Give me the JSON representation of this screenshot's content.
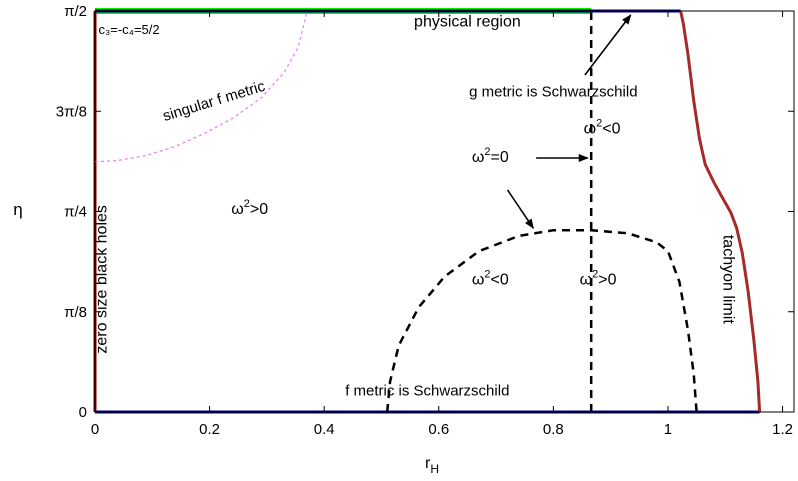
{
  "chart_data": {
    "type": "line",
    "title": "",
    "xlabel": {
      "base": "r",
      "sub": "H"
    },
    "ylabel": "η",
    "xlim": [
      0,
      1.22
    ],
    "ylim": [
      0,
      1.5708
    ],
    "xticks": [
      {
        "v": 0,
        "label": "0"
      },
      {
        "v": 0.2,
        "label": "0.2"
      },
      {
        "v": 0.4,
        "label": "0.4"
      },
      {
        "v": 0.6,
        "label": "0.6"
      },
      {
        "v": 0.8,
        "label": "0.8"
      },
      {
        "v": 1.0,
        "label": "1"
      },
      {
        "v": 1.2,
        "label": "1.2"
      }
    ],
    "yticks": [
      {
        "v": 0,
        "label": "0"
      },
      {
        "v": 0.3927,
        "label": "π/8"
      },
      {
        "v": 0.7854,
        "label": "π/4"
      },
      {
        "v": 1.1781,
        "label": "3π/8"
      },
      {
        "v": 1.5708,
        "label": "π/2"
      }
    ],
    "grid": false,
    "series": [
      {
        "id": "phys",
        "color": "#00ee00",
        "width": 6,
        "dash": "",
        "points": [
          [
            0,
            1.5708
          ],
          [
            0.866,
            1.5708
          ]
        ]
      },
      {
        "id": "top",
        "color": "#000080",
        "width": 3,
        "dash": "",
        "points": [
          [
            0,
            1.5708
          ],
          [
            1.022,
            1.5708
          ]
        ]
      },
      {
        "id": "bottom",
        "color": "#000080",
        "width": 3,
        "dash": "",
        "points": [
          [
            0,
            0
          ],
          [
            1.16,
            0
          ]
        ]
      },
      {
        "id": "left",
        "color": "#8b0000",
        "width": 3,
        "dash": "",
        "points": [
          [
            0,
            0
          ],
          [
            0,
            1.5708
          ]
        ]
      },
      {
        "id": "tachyon",
        "color": "#a52a2a",
        "width": 3,
        "dash": "",
        "points": [
          [
            1.022,
            1.5708
          ],
          [
            1.027,
            1.52
          ],
          [
            1.035,
            1.4
          ],
          [
            1.045,
            1.22
          ],
          [
            1.055,
            1.07
          ],
          [
            1.065,
            0.97
          ],
          [
            1.08,
            0.9
          ],
          [
            1.095,
            0.84
          ],
          [
            1.11,
            0.78
          ],
          [
            1.12,
            0.72
          ],
          [
            1.13,
            0.62
          ],
          [
            1.14,
            0.47
          ],
          [
            1.15,
            0.28
          ],
          [
            1.157,
            0.12
          ],
          [
            1.16,
            0
          ]
        ]
      },
      {
        "id": "vertical",
        "color": "#000000",
        "width": 2.5,
        "dash": "8,6",
        "points": [
          [
            0.866,
            0
          ],
          [
            0.866,
            1.5708
          ]
        ]
      },
      {
        "id": "dome",
        "color": "#000000",
        "width": 2.5,
        "dash": "8,6",
        "points": [
          [
            0.51,
            0
          ],
          [
            0.515,
            0.12
          ],
          [
            0.53,
            0.26
          ],
          [
            0.565,
            0.41
          ],
          [
            0.61,
            0.53
          ],
          [
            0.67,
            0.63
          ],
          [
            0.74,
            0.69
          ],
          [
            0.8,
            0.712
          ],
          [
            0.866,
            0.712
          ],
          [
            0.93,
            0.7
          ],
          [
            0.98,
            0.665
          ],
          [
            1.0,
            0.63
          ],
          [
            1.02,
            0.51
          ],
          [
            1.035,
            0.32
          ],
          [
            1.045,
            0.15
          ],
          [
            1.05,
            0
          ]
        ]
      },
      {
        "id": "singular",
        "color": "#ee82ee",
        "width": 1.3,
        "dash": "3,3",
        "points": [
          [
            0,
            0.98
          ],
          [
            0.04,
            0.985
          ],
          [
            0.09,
            1.005
          ],
          [
            0.14,
            1.04
          ],
          [
            0.19,
            1.09
          ],
          [
            0.24,
            1.15
          ],
          [
            0.29,
            1.23
          ],
          [
            0.33,
            1.33
          ],
          [
            0.355,
            1.43
          ],
          [
            0.37,
            1.5708
          ]
        ]
      }
    ],
    "labels": [
      {
        "id": "physical-region-label",
        "text": "physical region",
        "x": 0.65,
        "y": 1.51,
        "size": 16,
        "anchor": "middle",
        "rotate": 0
      },
      {
        "id": "g-metric-label",
        "text": "g metric is Schwarzschild",
        "x": 0.8,
        "y": 1.235,
        "size": 15,
        "anchor": "middle",
        "rotate": 0
      },
      {
        "id": "f-metric-label",
        "text": "f metric is Schwarzschild",
        "x": 0.58,
        "y": 0.065,
        "size": 15,
        "anchor": "middle",
        "rotate": 0
      },
      {
        "id": "singular-label",
        "text": "singular f metric",
        "x": 0.21,
        "y": 1.2,
        "size": 15,
        "anchor": "middle",
        "rotate": -17
      },
      {
        "id": "zero-size-label",
        "text": "zero size black holes",
        "x": 0.02,
        "y": 0.52,
        "size": 16,
        "anchor": "middle",
        "rotate": -90
      },
      {
        "id": "tachyon-label",
        "text": "tachyon limit",
        "x": 1.097,
        "y": 0.52,
        "size": 16,
        "anchor": "middle",
        "rotate": 90
      }
    ],
    "omega_labels": [
      {
        "id": "omega-label-1",
        "symbol": "ω",
        "exp": "2",
        "rel": ">0",
        "x": 0.27,
        "y": 0.775
      },
      {
        "id": "omega-label-2",
        "symbol": "ω",
        "exp": "2",
        "rel": "<0",
        "x": 0.885,
        "y": 1.09
      },
      {
        "id": "omega-label-3",
        "symbol": "ω",
        "exp": "2",
        "rel": "=0",
        "x": 0.69,
        "y": 0.98
      },
      {
        "id": "omega-label-4",
        "symbol": "ω",
        "exp": "2",
        "rel": "<0",
        "x": 0.69,
        "y": 0.5
      },
      {
        "id": "omega-label-5",
        "symbol": "ω",
        "exp": "2",
        "rel": ">0",
        "x": 0.878,
        "y": 0.5
      }
    ],
    "coupling_label": {
      "text": "c₃=-c₄=5/2",
      "x": 0.006,
      "y": 1.48
    },
    "arrows": [
      {
        "id": "arrow-g-metric",
        "from": [
          0.855,
          1.32
        ],
        "to": [
          0.935,
          1.555
        ]
      },
      {
        "id": "arrow-omega-zero-right",
        "from": [
          0.77,
          0.995
        ],
        "to": [
          0.86,
          0.995
        ]
      },
      {
        "id": "arrow-omega-zero-down",
        "from": [
          0.72,
          0.87
        ],
        "to": [
          0.765,
          0.72
        ]
      }
    ]
  }
}
